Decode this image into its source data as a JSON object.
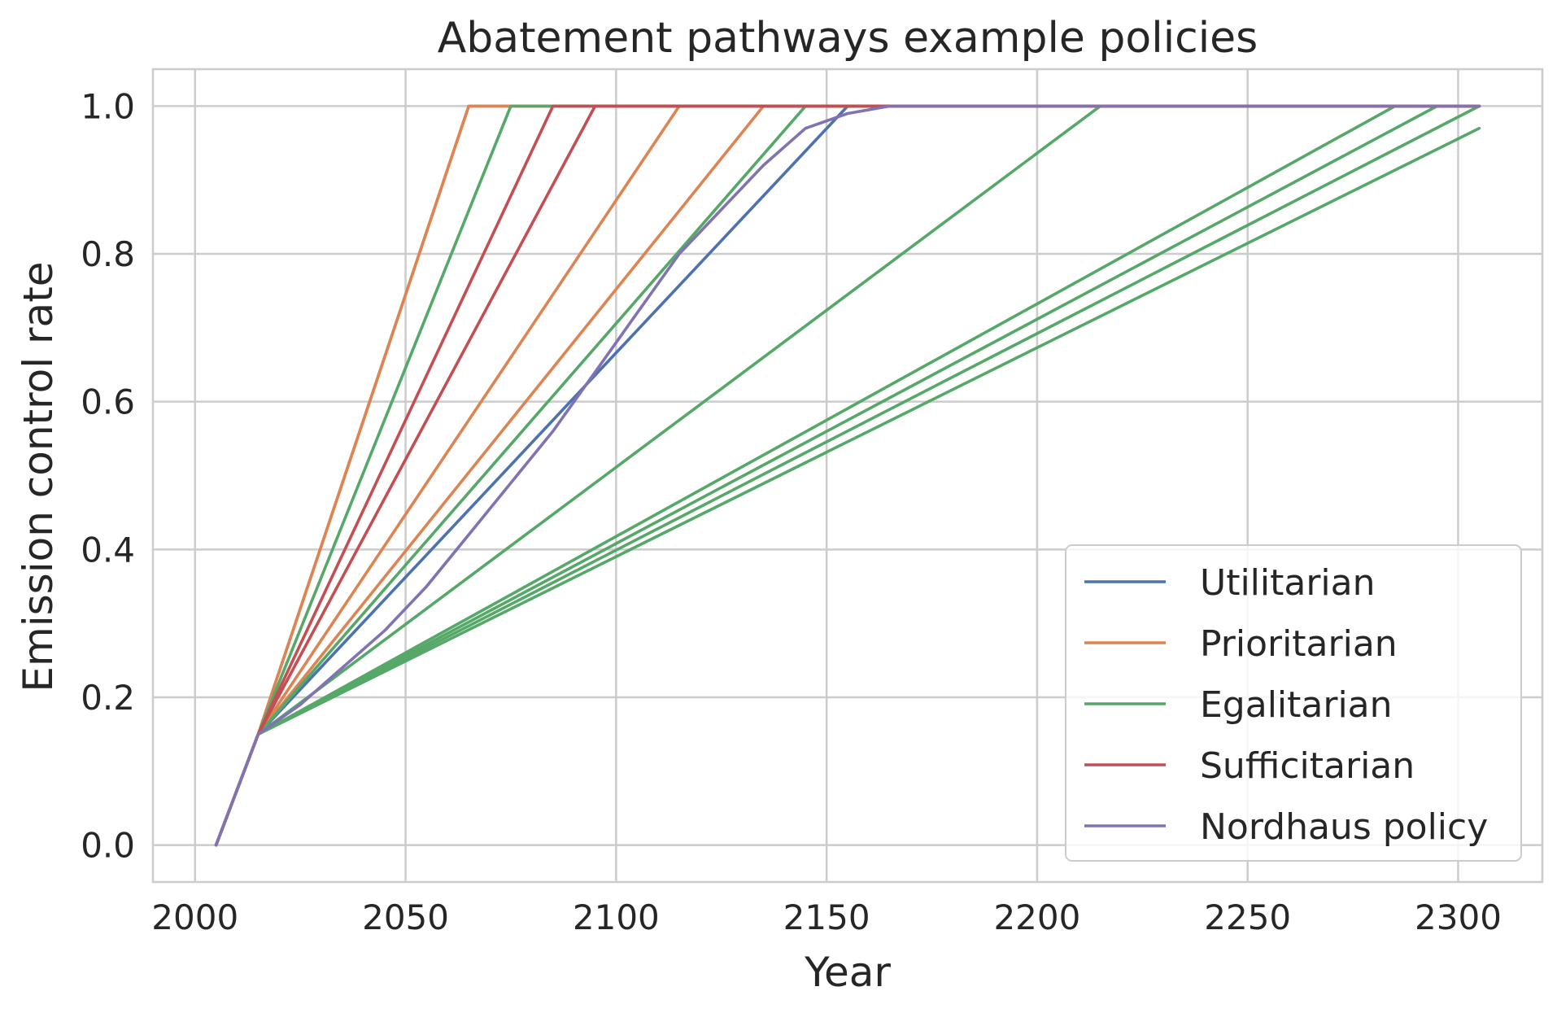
{
  "chart_data": {
    "type": "line",
    "title": "Abatement pathways example policies",
    "xlabel": "Year",
    "ylabel": "Emission control rate",
    "xlim": [
      1990,
      2320
    ],
    "ylim": [
      -0.05,
      1.05
    ],
    "xticks": [
      2000,
      2050,
      2100,
      2150,
      2200,
      2250,
      2300
    ],
    "xtick_labels": [
      "2000",
      "2050",
      "2100",
      "2150",
      "2200",
      "2250",
      "2300"
    ],
    "yticks": [
      0.0,
      0.2,
      0.4,
      0.6,
      0.8,
      1.0
    ],
    "ytick_labels": [
      "0.0",
      "0.2",
      "0.4",
      "0.6",
      "0.8",
      "1.0"
    ],
    "grid": true,
    "legend_position": "lower-right",
    "colors": {
      "Utilitarian": "#4c72b0",
      "Prioritarian": "#dd8452",
      "Egalitarian": "#55a868",
      "Sufficitarian": "#c44e52",
      "Nordhaus policy": "#8172b3"
    },
    "legend": [
      "Utilitarian",
      "Prioritarian",
      "Egalitarian",
      "Sufficitarian",
      "Nordhaus policy"
    ],
    "series": [
      {
        "group": "Utilitarian",
        "x": [
          2005,
          2015,
          2155,
          2305
        ],
        "y": [
          0.0,
          0.15,
          1.0,
          1.0
        ]
      },
      {
        "group": "Prioritarian",
        "x": [
          2005,
          2015,
          2065,
          2305
        ],
        "y": [
          0.0,
          0.15,
          1.0,
          1.0
        ]
      },
      {
        "group": "Prioritarian",
        "x": [
          2005,
          2015,
          2065,
          2305
        ],
        "y": [
          0.0,
          0.15,
          1.0,
          1.0
        ]
      },
      {
        "group": "Prioritarian",
        "x": [
          2005,
          2015,
          2115,
          2305
        ],
        "y": [
          0.0,
          0.15,
          1.0,
          1.0
        ]
      },
      {
        "group": "Prioritarian",
        "x": [
          2005,
          2015,
          2135,
          2305
        ],
        "y": [
          0.0,
          0.15,
          1.0,
          1.0
        ]
      },
      {
        "group": "Egalitarian",
        "x": [
          2005,
          2015,
          2075,
          2305
        ],
        "y": [
          0.0,
          0.15,
          1.0,
          1.0
        ]
      },
      {
        "group": "Egalitarian",
        "x": [
          2005,
          2015,
          2145,
          2305
        ],
        "y": [
          0.0,
          0.15,
          1.0,
          1.0
        ]
      },
      {
        "group": "Egalitarian",
        "x": [
          2005,
          2015,
          2215,
          2305
        ],
        "y": [
          0.0,
          0.15,
          1.0,
          1.0
        ]
      },
      {
        "group": "Egalitarian",
        "x": [
          2005,
          2015,
          2285,
          2305
        ],
        "y": [
          0.0,
          0.15,
          1.0,
          1.0
        ]
      },
      {
        "group": "Egalitarian",
        "x": [
          2005,
          2015,
          2295,
          2305
        ],
        "y": [
          0.0,
          0.15,
          1.0,
          1.0
        ]
      },
      {
        "group": "Egalitarian",
        "x": [
          2005,
          2015,
          2305
        ],
        "y": [
          0.0,
          0.15,
          1.0
        ]
      },
      {
        "group": "Egalitarian",
        "x": [
          2005,
          2015,
          2305
        ],
        "y": [
          0.0,
          0.15,
          0.97
        ]
      },
      {
        "group": "Sufficitarian",
        "x": [
          2005,
          2015,
          2085,
          2305
        ],
        "y": [
          0.0,
          0.15,
          1.0,
          1.0
        ]
      },
      {
        "group": "Sufficitarian",
        "x": [
          2005,
          2015,
          2095,
          2305
        ],
        "y": [
          0.0,
          0.15,
          1.0,
          1.0
        ]
      },
      {
        "group": "Nordhaus policy",
        "x": [
          2005,
          2015,
          2025,
          2035,
          2045,
          2055,
          2065,
          2075,
          2085,
          2095,
          2105,
          2115,
          2125,
          2135,
          2145,
          2155,
          2165,
          2305
        ],
        "y": [
          0.0,
          0.15,
          0.19,
          0.24,
          0.29,
          0.35,
          0.42,
          0.49,
          0.56,
          0.64,
          0.72,
          0.8,
          0.86,
          0.92,
          0.97,
          0.99,
          1.0,
          1.0
        ]
      }
    ]
  }
}
